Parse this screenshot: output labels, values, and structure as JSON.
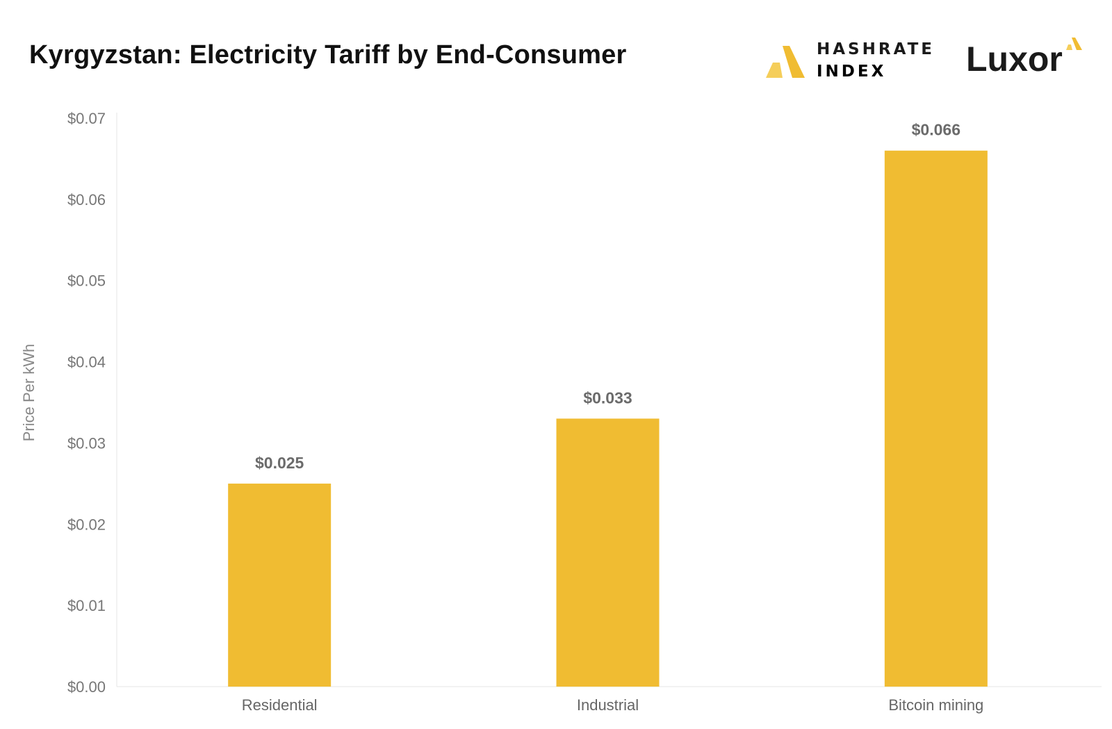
{
  "chart_data": {
    "type": "bar",
    "title": "Kyrgyzstan: Electricity Tariff by End-Consumer",
    "xlabel": "",
    "ylabel": "Price Per kWh",
    "categories": [
      "Residential",
      "Industrial",
      "Bitcoin mining"
    ],
    "values": [
      0.025,
      0.033,
      0.066
    ],
    "data_labels": [
      "$0.025",
      "$0.033",
      "$0.066"
    ],
    "ylim": [
      0,
      0.07
    ],
    "yticks": [
      0,
      0.01,
      0.02,
      0.03,
      0.04,
      0.05,
      0.06,
      0.07
    ],
    "ytick_labels": [
      "$0.00",
      "$0.01",
      "$0.02",
      "$0.03",
      "$0.04",
      "$0.05",
      "$0.06",
      "$0.07"
    ],
    "grid": false,
    "bar_color": "#F0BC32"
  },
  "logos": {
    "hashrate_index": {
      "line1": "HASHRATE",
      "line2": "INDEX",
      "accent": "#F0BC32"
    },
    "luxor": {
      "word": "Luxor",
      "accent": "#F0BC32"
    }
  }
}
